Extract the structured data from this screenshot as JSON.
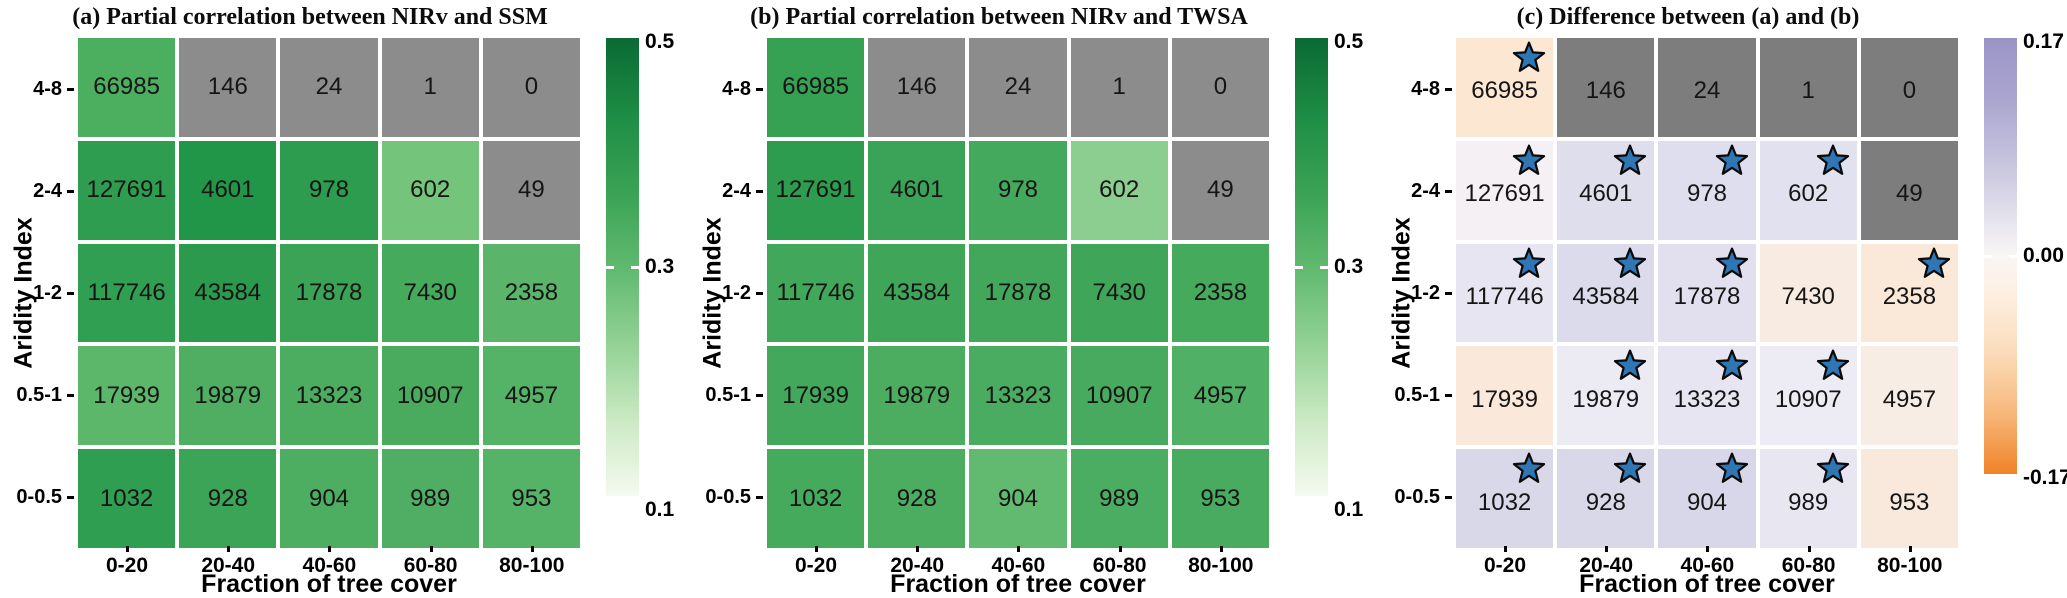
{
  "shared": {
    "ylabel": "Aridity Index",
    "xlabel": "Fraction of tree cover",
    "x_categories": [
      "0-20",
      "20-40",
      "40-60",
      "60-80",
      "80-100"
    ],
    "y_categories": [
      "4-8",
      "2-4",
      "1-2",
      "0.5-1",
      "0-0.5"
    ],
    "counts": [
      [
        66985,
        146,
        24,
        1,
        0
      ],
      [
        127691,
        4601,
        978,
        602,
        49
      ],
      [
        117746,
        43584,
        17878,
        7430,
        2358
      ],
      [
        17939,
        19879,
        13323,
        10907,
        4957
      ],
      [
        1032,
        928,
        904,
        989,
        953
      ]
    ],
    "star_color": "#2f76b4",
    "star_outline": "#0a0a0a",
    "masked_cell_color_green_panels": "#8c8c8c",
    "masked_cell_color_diff_panel": "#7d7d7d"
  },
  "panels": [
    {
      "id": "panel-a",
      "title": "(a) Partial correlation between NIRv and SSM",
      "cell_colors": [
        [
          "#4caf60",
          "#8c8c8c",
          "#8c8c8c",
          "#8c8c8c",
          "#8c8c8c"
        ],
        [
          "#2e9d4f",
          "#219649",
          "#2d9c4e",
          "#74c47b",
          "#8c8c8c"
        ],
        [
          "#309f51",
          "#2b9a4d",
          "#3aa355",
          "#46aa5d",
          "#5ab56a"
        ],
        [
          "#5cb76b",
          "#4fae62",
          "#4cac60",
          "#4aab5f",
          "#55b368"
        ],
        [
          "#2f9e50",
          "#3ba457",
          "#4dad61",
          "#4fae63",
          "#55b368"
        ]
      ],
      "stars": null,
      "colorbar": {
        "ticks": [
          "0.5",
          "0.3",
          "0.1"
        ],
        "gradient": [
          "#0a6a33 0%",
          "#1f8f46 18%",
          "#3aa355 34%",
          "#5fb96f 50%",
          "#96d397 68%",
          "#cdeac5 84%",
          "#f4faf0 100%"
        ]
      }
    },
    {
      "id": "panel-b",
      "title": "(b) Partial correlation between NIRv and TWSA",
      "cell_colors": [
        [
          "#36a053",
          "#8c8c8c",
          "#8c8c8c",
          "#8c8c8c",
          "#8c8c8c"
        ],
        [
          "#2d9c4e",
          "#3ba357",
          "#44a95c",
          "#8ccd90",
          "#8c8c8c"
        ],
        [
          "#41a75a",
          "#3fa659",
          "#42a75b",
          "#3fa659",
          "#46aa5d"
        ],
        [
          "#43a85b",
          "#4cad61",
          "#4aac60",
          "#47aa5e",
          "#50b065"
        ],
        [
          "#46aa5d",
          "#4cad61",
          "#62ba70",
          "#4bad61",
          "#48ab5f"
        ]
      ],
      "stars": null,
      "colorbar": {
        "ticks": [
          "0.5",
          "0.3",
          "0.1"
        ],
        "gradient": [
          "#0a6a33 0%",
          "#1f8f46 18%",
          "#3aa355 34%",
          "#5fb96f 50%",
          "#96d397 68%",
          "#cdeac5 84%",
          "#f4faf0 100%"
        ]
      }
    },
    {
      "id": "panel-c",
      "title": "(c) Difference between (a) and (b)",
      "cell_colors": [
        [
          "#fbe7d2",
          "#7d7d7d",
          "#7d7d7d",
          "#7d7d7d",
          "#7d7d7d"
        ],
        [
          "#f4f0f3",
          "#dfdeed",
          "#dfdeee",
          "#e2e1ef",
          "#7d7d7d"
        ],
        [
          "#e7e5f1",
          "#dcdbeb",
          "#e2e0ee",
          "#f8ece2",
          "#fae8d8"
        ],
        [
          "#fae9da",
          "#eceaf3",
          "#e7e5f1",
          "#edecf4",
          "#f8ede5"
        ],
        [
          "#d9d8e9",
          "#d9d8e9",
          "#d8d7e9",
          "#e7e6f1",
          "#f9e9dd"
        ]
      ],
      "stars": [
        [
          1,
          0,
          0,
          0,
          0
        ],
        [
          1,
          1,
          1,
          1,
          0
        ],
        [
          1,
          1,
          1,
          0,
          1
        ],
        [
          0,
          1,
          1,
          1,
          0
        ],
        [
          1,
          1,
          1,
          1,
          0
        ]
      ],
      "colorbar": {
        "ticks": [
          "0.17",
          "0.00",
          "-0.17"
        ],
        "gradient": [
          "#9a94c6 0%",
          "#aca7d0 15%",
          "#cac7e0 30%",
          "#e8e6ef 43%",
          "#f9f6f4 50%",
          "#fdf0e3 58%",
          "#fbdcba 72%",
          "#f7b87c 86%",
          "#f08227 100%"
        ]
      }
    }
  ],
  "chart_data": [
    {
      "type": "heatmap",
      "title": "(a) Partial correlation between NIRv and SSM",
      "xlabel": "Fraction of tree cover",
      "ylabel": "Aridity Index",
      "x_categories": [
        "0-20",
        "20-40",
        "40-60",
        "60-80",
        "80-100"
      ],
      "y_categories": [
        "4-8",
        "2-4",
        "1-2",
        "0.5-1",
        "0-0.5"
      ],
      "cell_count_labels": [
        [
          66985,
          146,
          24,
          1,
          0
        ],
        [
          127691,
          4601,
          978,
          602,
          49
        ],
        [
          117746,
          43584,
          17878,
          7430,
          2358
        ],
        [
          17939,
          19879,
          13323,
          10907,
          4957
        ],
        [
          1032,
          928,
          904,
          989,
          953
        ]
      ],
      "masked_gray_cells": [
        [
          0,
          1,
          1,
          1,
          1
        ],
        [
          0,
          0,
          0,
          0,
          1
        ],
        [
          0,
          0,
          0,
          0,
          0
        ],
        [
          0,
          0,
          0,
          0,
          0
        ],
        [
          0,
          0,
          0,
          0,
          0
        ]
      ],
      "values_estimated_from_color": [
        [
          0.32,
          null,
          null,
          null,
          null
        ],
        [
          0.38,
          0.4,
          0.38,
          0.27,
          null
        ],
        [
          0.37,
          0.39,
          0.36,
          0.34,
          0.31
        ],
        [
          0.3,
          0.33,
          0.33,
          0.34,
          0.31
        ],
        [
          0.38,
          0.36,
          0.33,
          0.33,
          0.31
        ]
      ],
      "colorbar": {
        "range": [
          0.1,
          0.5
        ],
        "ticks": [
          0.5,
          0.3,
          0.1
        ],
        "palette": "light-to-dark green",
        "position": "right"
      },
      "grid": false,
      "legend_position": "none"
    },
    {
      "type": "heatmap",
      "title": "(b) Partial correlation between NIRv and TWSA",
      "xlabel": "Fraction of tree cover",
      "ylabel": "Aridity Index",
      "x_categories": [
        "0-20",
        "20-40",
        "40-60",
        "60-80",
        "80-100"
      ],
      "y_categories": [
        "4-8",
        "2-4",
        "1-2",
        "0.5-1",
        "0-0.5"
      ],
      "cell_count_labels": [
        [
          66985,
          146,
          24,
          1,
          0
        ],
        [
          127691,
          4601,
          978,
          602,
          49
        ],
        [
          117746,
          43584,
          17878,
          7430,
          2358
        ],
        [
          17939,
          19879,
          13323,
          10907,
          4957
        ],
        [
          1032,
          928,
          904,
          989,
          953
        ]
      ],
      "masked_gray_cells": [
        [
          0,
          1,
          1,
          1,
          1
        ],
        [
          0,
          0,
          0,
          0,
          1
        ],
        [
          0,
          0,
          0,
          0,
          0
        ],
        [
          0,
          0,
          0,
          0,
          0
        ],
        [
          0,
          0,
          0,
          0,
          0
        ]
      ],
      "values_estimated_from_color": [
        [
          0.35,
          null,
          null,
          null,
          null
        ],
        [
          0.38,
          0.36,
          0.34,
          0.22,
          null
        ],
        [
          0.35,
          0.35,
          0.35,
          0.35,
          0.34
        ],
        [
          0.34,
          0.33,
          0.33,
          0.34,
          0.32
        ],
        [
          0.34,
          0.33,
          0.29,
          0.33,
          0.33
        ]
      ],
      "colorbar": {
        "range": [
          0.1,
          0.5
        ],
        "ticks": [
          0.5,
          0.3,
          0.1
        ],
        "palette": "light-to-dark green",
        "position": "right"
      },
      "grid": false,
      "legend_position": "none"
    },
    {
      "type": "heatmap",
      "title": "(c) Difference between (a) and (b)",
      "xlabel": "Fraction of tree cover",
      "ylabel": "Aridity Index",
      "x_categories": [
        "0-20",
        "20-40",
        "40-60",
        "60-80",
        "80-100"
      ],
      "y_categories": [
        "4-8",
        "2-4",
        "1-2",
        "0.5-1",
        "0-0.5"
      ],
      "cell_count_labels": [
        [
          66985,
          146,
          24,
          1,
          0
        ],
        [
          127691,
          4601,
          978,
          602,
          49
        ],
        [
          117746,
          43584,
          17878,
          7430,
          2358
        ],
        [
          17939,
          19879,
          13323,
          10907,
          4957
        ],
        [
          1032,
          928,
          904,
          989,
          953
        ]
      ],
      "masked_gray_cells": [
        [
          0,
          1,
          1,
          1,
          1
        ],
        [
          0,
          0,
          0,
          0,
          1
        ],
        [
          0,
          0,
          0,
          0,
          0
        ],
        [
          0,
          0,
          0,
          0,
          0
        ],
        [
          0,
          0,
          0,
          0,
          0
        ]
      ],
      "values_estimated_from_color": [
        [
          -0.04,
          null,
          null,
          null,
          null
        ],
        [
          0.01,
          0.04,
          0.04,
          0.03,
          null
        ],
        [
          0.03,
          0.05,
          0.04,
          -0.02,
          -0.04
        ],
        [
          -0.03,
          0.02,
          0.03,
          0.02,
          -0.02
        ],
        [
          0.06,
          0.06,
          0.06,
          0.03,
          -0.03
        ]
      ],
      "significance_star_cells": [
        [
          1,
          0,
          0,
          0,
          0
        ],
        [
          1,
          1,
          1,
          1,
          0
        ],
        [
          1,
          1,
          1,
          0,
          1
        ],
        [
          0,
          1,
          1,
          1,
          0
        ],
        [
          1,
          1,
          1,
          1,
          0
        ]
      ],
      "colorbar": {
        "range": [
          -0.17,
          0.17
        ],
        "ticks": [
          0.17,
          0.0,
          -0.17
        ],
        "palette": "orange-white-purple diverging",
        "position": "right"
      },
      "grid": false,
      "legend_position": "none"
    }
  ]
}
